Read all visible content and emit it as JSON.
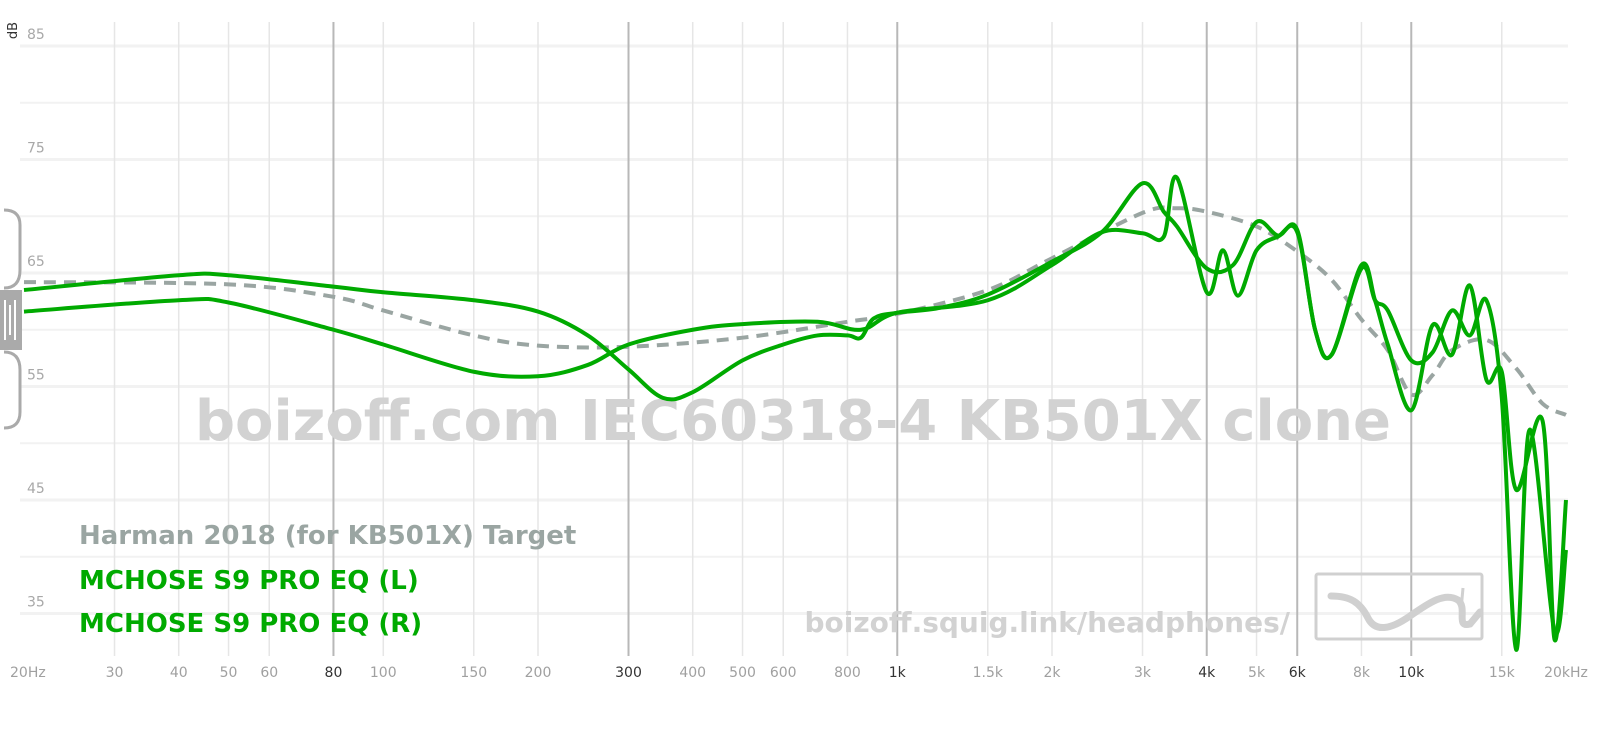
{
  "chart_data": {
    "type": "line",
    "xlabel": "",
    "ylabel": "dB",
    "x_scale": "log",
    "xlim": [
      20,
      20000
    ],
    "ylim": [
      31,
      87
    ],
    "grid": true,
    "legend_position": "bottom-left",
    "y_ticks": [
      "85",
      "75",
      "65",
      "55",
      "45",
      "35"
    ],
    "y_tick_values": [
      85,
      75,
      65,
      55,
      45,
      35
    ],
    "x_ticks": [
      {
        "label": "20Hz",
        "value": 20,
        "major": false
      },
      {
        "label": "30",
        "value": 30,
        "major": false
      },
      {
        "label": "40",
        "value": 40,
        "major": false
      },
      {
        "label": "50",
        "value": 50,
        "major": false
      },
      {
        "label": "60",
        "value": 60,
        "major": false
      },
      {
        "label": "80",
        "value": 80,
        "major": true
      },
      {
        "label": "100",
        "value": 100,
        "major": false
      },
      {
        "label": "150",
        "value": 150,
        "major": false
      },
      {
        "label": "200",
        "value": 200,
        "major": false
      },
      {
        "label": "300",
        "value": 300,
        "major": true
      },
      {
        "label": "400",
        "value": 400,
        "major": false
      },
      {
        "label": "500",
        "value": 500,
        "major": false
      },
      {
        "label": "600",
        "value": 600,
        "major": false
      },
      {
        "label": "800",
        "value": 800,
        "major": false
      },
      {
        "label": "1k",
        "value": 1000,
        "major": true
      },
      {
        "label": "1.5k",
        "value": 1500,
        "major": false
      },
      {
        "label": "2k",
        "value": 2000,
        "major": false
      },
      {
        "label": "3k",
        "value": 3000,
        "major": false
      },
      {
        "label": "4k",
        "value": 4000,
        "major": true
      },
      {
        "label": "5k",
        "value": 5000,
        "major": false
      },
      {
        "label": "6k",
        "value": 6000,
        "major": true
      },
      {
        "label": "8k",
        "value": 8000,
        "major": false
      },
      {
        "label": "10k",
        "value": 10000,
        "major": true
      },
      {
        "label": "15k",
        "value": 15000,
        "major": false
      },
      {
        "label": "20kHz",
        "value": 20000,
        "major": false
      }
    ],
    "series": [
      {
        "name": "Harman 2018 (for KB501X) Target",
        "color": "#9aa5a2",
        "dashed": true,
        "x": [
          20,
          50,
          80,
          100,
          150,
          200,
          300,
          500,
          800,
          1000,
          1500,
          2000,
          3000,
          3500,
          4000,
          5000,
          6000,
          7000,
          8000,
          9000,
          10000,
          11000,
          12000,
          14000,
          16000,
          18000,
          20000
        ],
        "y": [
          64.2,
          64.0,
          62.9,
          61.7,
          59.5,
          58.6,
          58.5,
          59.3,
          60.7,
          61.4,
          63.5,
          66.3,
          70.3,
          70.7,
          70.4,
          69.1,
          66.9,
          64.4,
          60.9,
          58.2,
          54.3,
          56.0,
          58.2,
          59.1,
          56.6,
          53.5,
          52.5
        ]
      },
      {
        "name": "MCHOSE S9 PRO EQ (L)",
        "color": "#00aa00",
        "dashed": false,
        "x": [
          20,
          40,
          50,
          80,
          100,
          150,
          200,
          250,
          300,
          350,
          400,
          500,
          600,
          700,
          800,
          850,
          900,
          1000,
          1200,
          1500,
          2000,
          2500,
          3000,
          3300,
          3500,
          4000,
          4500,
          5000,
          5500,
          6000,
          6500,
          7000,
          8000,
          8500,
          9000,
          10000,
          11000,
          12000,
          13000,
          14000,
          15000,
          16000,
          18000,
          19000,
          20000
        ],
        "y": [
          63.5,
          64.8,
          64.8,
          63.8,
          63.3,
          62.6,
          61.6,
          59.5,
          56.5,
          54.0,
          54.5,
          57.3,
          58.7,
          59.5,
          59.5,
          59.3,
          61.0,
          61.5,
          61.9,
          63.1,
          66.0,
          68.6,
          72.9,
          70.4,
          69.1,
          65.4,
          65.7,
          69.5,
          68.3,
          68.8,
          60.0,
          57.8,
          65.7,
          62.6,
          58.7,
          52.9,
          60.4,
          57.8,
          63.9,
          55.6,
          56.3,
          45.9,
          52.0,
          32.7,
          45.0
        ]
      },
      {
        "name": "MCHOSE S9 PRO EQ (R)",
        "color": "#00aa00",
        "dashed": false,
        "x": [
          20,
          40,
          50,
          80,
          100,
          150,
          200,
          250,
          300,
          400,
          500,
          700,
          850,
          1000,
          1500,
          2000,
          2500,
          3000,
          3300,
          3500,
          4000,
          4300,
          4600,
          5000,
          5500,
          6000,
          6500,
          7000,
          8000,
          8500,
          9000,
          10000,
          11000,
          12000,
          13000,
          14000,
          15000,
          16000,
          17000,
          19000,
          20000
        ],
        "y": [
          61.6,
          62.6,
          62.4,
          60.0,
          58.7,
          56.3,
          55.9,
          56.9,
          58.7,
          60.0,
          60.5,
          60.7,
          60.0,
          61.5,
          62.6,
          65.7,
          68.6,
          68.5,
          68.2,
          73.4,
          63.3,
          67.0,
          63.0,
          67.0,
          68.2,
          68.6,
          60.0,
          57.8,
          65.4,
          62.6,
          61.7,
          57.3,
          58.0,
          61.7,
          59.5,
          62.6,
          54.0,
          31.8,
          51.2,
          33.5,
          40.6
        ]
      }
    ]
  },
  "watermark": {
    "title": "boizoff.com IEC60318-4 KB501X clone",
    "url": "boizoff.squig.link/headphones/",
    "logo_icon": "squiglink-logo-icon"
  },
  "controls": {
    "y_scale_handle_icon": "drag-handle-icon"
  }
}
